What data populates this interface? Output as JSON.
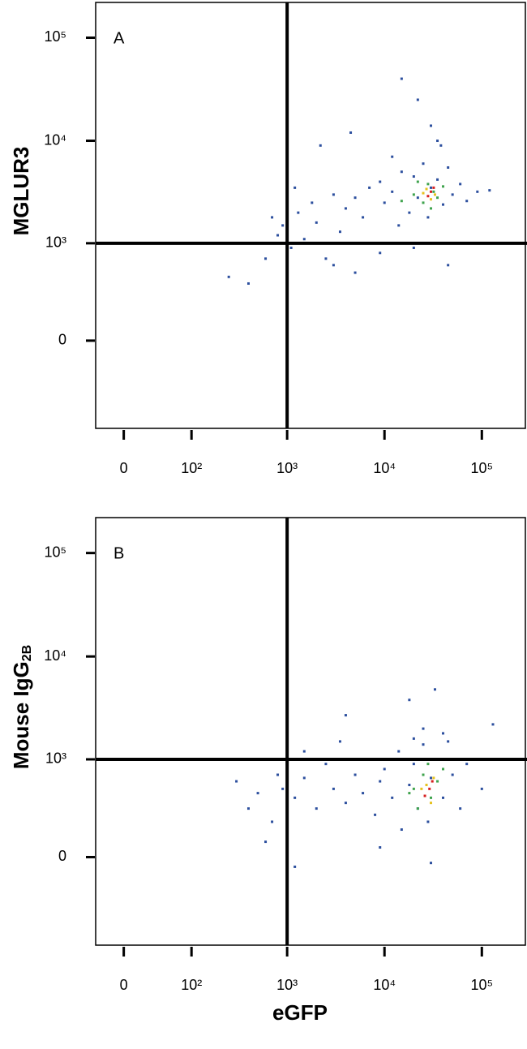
{
  "chart_data": [
    {
      "type": "scatter",
      "panel": "A",
      "ylabel": "MGLUR3",
      "xlim": [
        -30,
        280000
      ],
      "ylim": [
        -800,
        220000
      ],
      "xticks": [
        0,
        {
          "value": 100,
          "label": "10²"
        },
        {
          "value": 1000,
          "label": "10³"
        },
        {
          "value": 10000,
          "label": "10⁴"
        },
        {
          "value": 100000,
          "label": "10⁵"
        }
      ],
      "yticks": [
        0,
        {
          "value": 1000,
          "label": "10³"
        },
        {
          "value": 10000,
          "label": "10⁴"
        },
        {
          "value": 100000,
          "label": "10⁵"
        }
      ],
      "gate": {
        "x": 1000,
        "y": 1000,
        "color": "#000000"
      },
      "series": [
        {
          "color": "#2c4f9e",
          "x": [
            250,
            400,
            600,
            800,
            900,
            1100,
            1300,
            1500,
            1800,
            2000,
            2500,
            3000,
            3500,
            4000,
            5000,
            6000,
            7000,
            8000,
            9000,
            10000,
            12000,
            14000,
            15000,
            18000,
            20000,
            22000,
            25000,
            28000,
            30000,
            35000,
            40000,
            45000,
            50000,
            60000,
            70000,
            90000,
            120000,
            2200,
            4500,
            15000,
            22000,
            30000,
            38000,
            600,
            1000,
            3000,
            5000,
            9000,
            20000,
            45000,
            35000,
            12000,
            1200,
            700
          ],
          "y": [
            450,
            380,
            700,
            1200,
            1500,
            900,
            2000,
            1100,
            2500,
            1600,
            700,
            3000,
            1300,
            2200,
            2800,
            1800,
            3500,
            1000,
            4000,
            2500,
            3200,
            1500,
            5000,
            2000,
            4500,
            2800,
            6000,
            1800,
            3500,
            4200,
            2400,
            5500,
            3000,
            3800,
            2600,
            3200,
            3300,
            9000,
            12000,
            40000,
            25000,
            14000,
            9000,
            1000,
            700,
            600,
            500,
            800,
            900,
            600,
            10000,
            7000,
            3500,
            1800
          ]
        },
        {
          "color": "#3fa34d",
          "x": [
            20000,
            25000,
            28000,
            32000,
            35000,
            40000,
            22000,
            30000,
            15000
          ],
          "y": [
            3000,
            2500,
            3800,
            3200,
            2800,
            3600,
            4000,
            2200,
            2600
          ]
        },
        {
          "color": "#e6c21e",
          "x": [
            27000,
            33000,
            30000,
            25000
          ],
          "y": [
            3400,
            3000,
            2700,
            3100
          ]
        },
        {
          "color": "#d62020",
          "x": [
            30000,
            32000,
            28000
          ],
          "y": [
            3200,
            3500,
            2900
          ]
        }
      ]
    },
    {
      "type": "scatter",
      "panel": "B",
      "ylabel": "Mouse IgG",
      "ylabel_subscript": "2B",
      "xlabel": "eGFP",
      "xlim": [
        -30,
        280000
      ],
      "ylim": [
        -800,
        220000
      ],
      "xticks": [
        0,
        {
          "value": 100,
          "label": "10²"
        },
        {
          "value": 1000,
          "label": "10³"
        },
        {
          "value": 10000,
          "label": "10⁴"
        },
        {
          "value": 100000,
          "label": "10⁵"
        }
      ],
      "yticks": [
        0,
        {
          "value": 1000,
          "label": "10³"
        },
        {
          "value": 10000,
          "label": "10⁴"
        },
        {
          "value": 100000,
          "label": "10⁵"
        }
      ],
      "gate": {
        "x": 1000,
        "y": 1000,
        "color": "#000000"
      },
      "series": [
        {
          "color": "#2c4f9e",
          "x": [
            300,
            400,
            500,
            700,
            800,
            900,
            1000,
            1200,
            1500,
            2000,
            2500,
            3000,
            3500,
            4000,
            5000,
            6000,
            7000,
            8000,
            9000,
            10000,
            12000,
            14000,
            15000,
            18000,
            20000,
            22000,
            25000,
            28000,
            30000,
            35000,
            40000,
            45000,
            50000,
            60000,
            70000,
            100000,
            130000,
            18000,
            33000,
            4000,
            25000,
            40000,
            600,
            1200,
            9000,
            30000,
            20000,
            1500
          ],
          "y": [
            600,
            300,
            450,
            200,
            700,
            500,
            1100,
            400,
            650,
            300,
            900,
            500,
            1500,
            350,
            700,
            450,
            1000,
            250,
            600,
            800,
            400,
            1200,
            150,
            550,
            900,
            300,
            1400,
            200,
            650,
            1000,
            400,
            1500,
            700,
            300,
            900,
            500,
            2200,
            3800,
            4800,
            2700,
            2000,
            1800,
            80,
            -50,
            50,
            -30,
            1600,
            1200
          ]
        },
        {
          "color": "#3fa34d",
          "x": [
            20000,
            25000,
            30000,
            35000,
            40000,
            22000,
            28000,
            18000
          ],
          "y": [
            500,
            700,
            400,
            600,
            800,
            300,
            900,
            450
          ]
        },
        {
          "color": "#e6c21e",
          "x": [
            27000,
            32000,
            30000,
            24000
          ],
          "y": [
            550,
            650,
            350,
            500
          ]
        },
        {
          "color": "#d62020",
          "x": [
            29000,
            31000,
            26000
          ],
          "y": [
            500,
            600,
            420
          ]
        }
      ]
    }
  ]
}
